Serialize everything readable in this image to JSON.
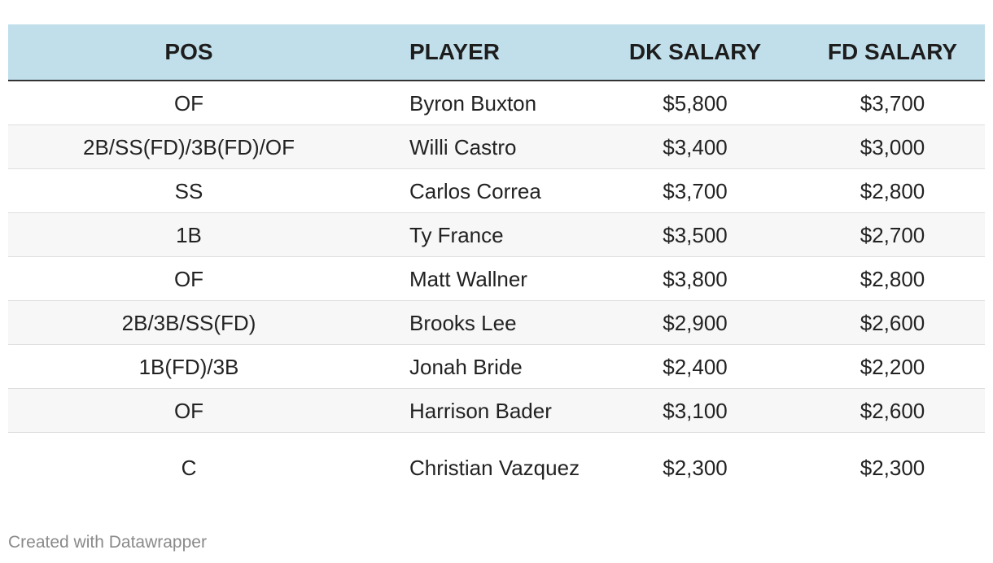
{
  "table": {
    "headers": {
      "pos": "POS",
      "player": "PLAYER",
      "dk_salary": "DK SALARY",
      "fd_salary": "FD SALARY"
    },
    "rows": [
      {
        "pos": "OF",
        "player": "Byron Buxton",
        "dk_salary": "$5,800",
        "fd_salary": "$3,700"
      },
      {
        "pos": "2B/SS(FD)/3B(FD)/OF",
        "player": "Willi Castro",
        "dk_salary": "$3,400",
        "fd_salary": "$3,000"
      },
      {
        "pos": "SS",
        "player": "Carlos Correa",
        "dk_salary": "$3,700",
        "fd_salary": "$2,800"
      },
      {
        "pos": "1B",
        "player": "Ty France",
        "dk_salary": "$3,500",
        "fd_salary": "$2,700"
      },
      {
        "pos": "OF",
        "player": "Matt Wallner",
        "dk_salary": "$3,800",
        "fd_salary": "$2,800"
      },
      {
        "pos": "2B/3B/SS(FD)",
        "player": "Brooks Lee",
        "dk_salary": "$2,900",
        "fd_salary": "$2,600"
      },
      {
        "pos": "1B(FD)/3B",
        "player": "Jonah Bride",
        "dk_salary": "$2,400",
        "fd_salary": "$2,200"
      },
      {
        "pos": "OF",
        "player": "Harrison Bader",
        "dk_salary": "$3,100",
        "fd_salary": "$2,600"
      },
      {
        "pos": "C",
        "player": "Christian Vazquez",
        "dk_salary": "$2,300",
        "fd_salary": "$2,300"
      }
    ]
  },
  "footer": {
    "credit": "Created with Datawrapper"
  }
}
